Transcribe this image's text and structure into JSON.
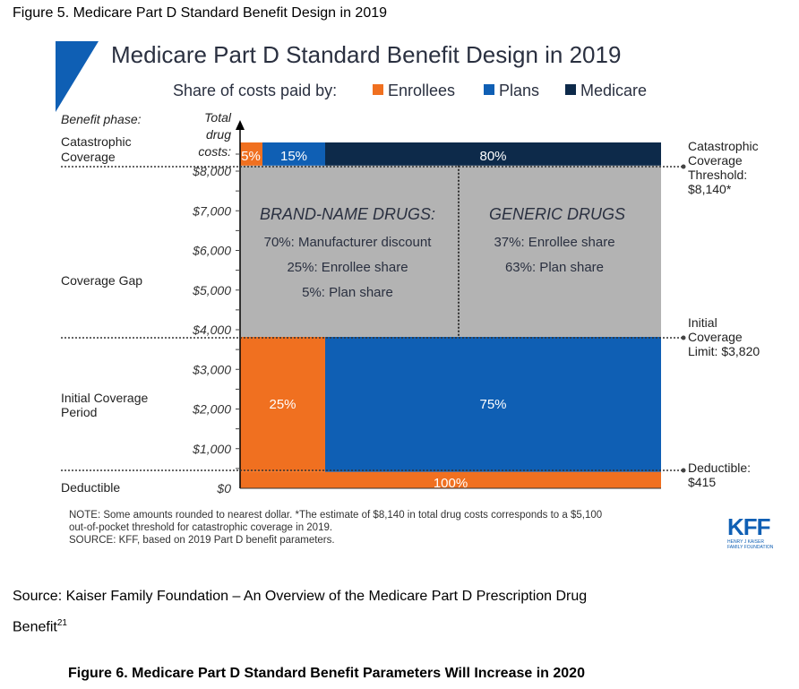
{
  "document": {
    "figure_caption": "Figure 5. Medicare Part D Standard Benefit Design in 2019",
    "source_line1": "Source: Kaiser Family Foundation – An Overview of the Medicare Part D Prescription Drug",
    "source_line2": "Benefit",
    "source_superscript": "21",
    "next_figure_caption": "Figure 6. Medicare Part D Standard Benefit Parameters Will Increase in 2020"
  },
  "colors": {
    "enrollees": "#f07020",
    "plans": "#0f5fb4",
    "medicare": "#0d2a4a",
    "coverage_gap": "#b3b3b3",
    "title_text": "#2a3040",
    "accent_triangle": "#0f5fb4"
  },
  "chart_data": {
    "type": "bar",
    "title": "Medicare Part D Standard Benefit Design in 2019",
    "legend": {
      "label": "Share of costs paid by:",
      "placement": "top",
      "entries": [
        {
          "name": "Enrollees",
          "color_key": "enrollees"
        },
        {
          "name": "Plans",
          "color_key": "plans"
        },
        {
          "name": "Medicare",
          "color_key": "medicare"
        }
      ]
    },
    "ylabel": "Total drug costs:",
    "phase_header": "Benefit phase:",
    "ylim": [
      0,
      8500
    ],
    "yticks": [
      {
        "value": 0,
        "label": "$0"
      },
      {
        "value": 1000,
        "label": "$1,000"
      },
      {
        "value": 2000,
        "label": "$2,000"
      },
      {
        "value": 3000,
        "label": "$3,000"
      },
      {
        "value": 4000,
        "label": "$4,000"
      },
      {
        "value": 5000,
        "label": "$5,000"
      },
      {
        "value": 6000,
        "label": "$6,000"
      },
      {
        "value": 7000,
        "label": "$7,000"
      },
      {
        "value": 8000,
        "label": "$8,000"
      }
    ],
    "phases": [
      {
        "name": "Deductible",
        "label": "Deductible",
        "from": 0,
        "to": 415,
        "segments": [
          {
            "payer": "enrollees",
            "share": 100,
            "label": "100%"
          }
        ]
      },
      {
        "name": "Initial Coverage Period",
        "label": "Initial Coverage Period",
        "from": 415,
        "to": 3820,
        "segments": [
          {
            "payer": "enrollees",
            "share": 25,
            "label": "25%"
          },
          {
            "payer": "plans",
            "share": 75,
            "label": "75%"
          }
        ]
      },
      {
        "name": "Coverage Gap",
        "label": "Coverage Gap",
        "from": 3820,
        "to": 8140,
        "brand": {
          "heading": "BRAND-NAME DRUGS:",
          "lines": [
            "70%: Manufacturer discount",
            "25%: Enrollee share",
            "5%: Plan share"
          ]
        },
        "generic": {
          "heading": "GENERIC DRUGS",
          "lines": [
            "37%: Enrollee share",
            "63%: Plan share"
          ]
        }
      },
      {
        "name": "Catastrophic Coverage",
        "label": "Catastrophic Coverage",
        "from": 8140,
        "to": 8750,
        "segments": [
          {
            "payer": "enrollees",
            "share": 5,
            "label": "5%"
          },
          {
            "payer": "plans",
            "share": 15,
            "label": "15%"
          },
          {
            "payer": "medicare",
            "share": 80,
            "label": "80%"
          }
        ]
      }
    ],
    "annotations": [
      {
        "name": "catastrophic-threshold",
        "value": 8140,
        "lines": [
          "Catastrophic",
          "Coverage",
          "Threshold:",
          "$8,140*"
        ]
      },
      {
        "name": "initial-coverage-limit",
        "value": 3820,
        "lines": [
          "Initial",
          "Coverage",
          "Limit: $3,820"
        ]
      },
      {
        "name": "deductible",
        "value": 415,
        "lines": [
          "Deductible:",
          "$415"
        ]
      }
    ],
    "notes": [
      "NOTE: Some amounts rounded to nearest dollar. *The estimate of $8,140 in total drug costs corresponds to a $5,100",
      "out-of-pocket threshold for catastrophic coverage in 2019.",
      "SOURCE: KFF, based on 2019 Part D benefit parameters."
    ],
    "logo": {
      "main": "KFF",
      "line1": "HENRY J KAISER",
      "line2": "FAMILY FOUNDATION"
    }
  }
}
